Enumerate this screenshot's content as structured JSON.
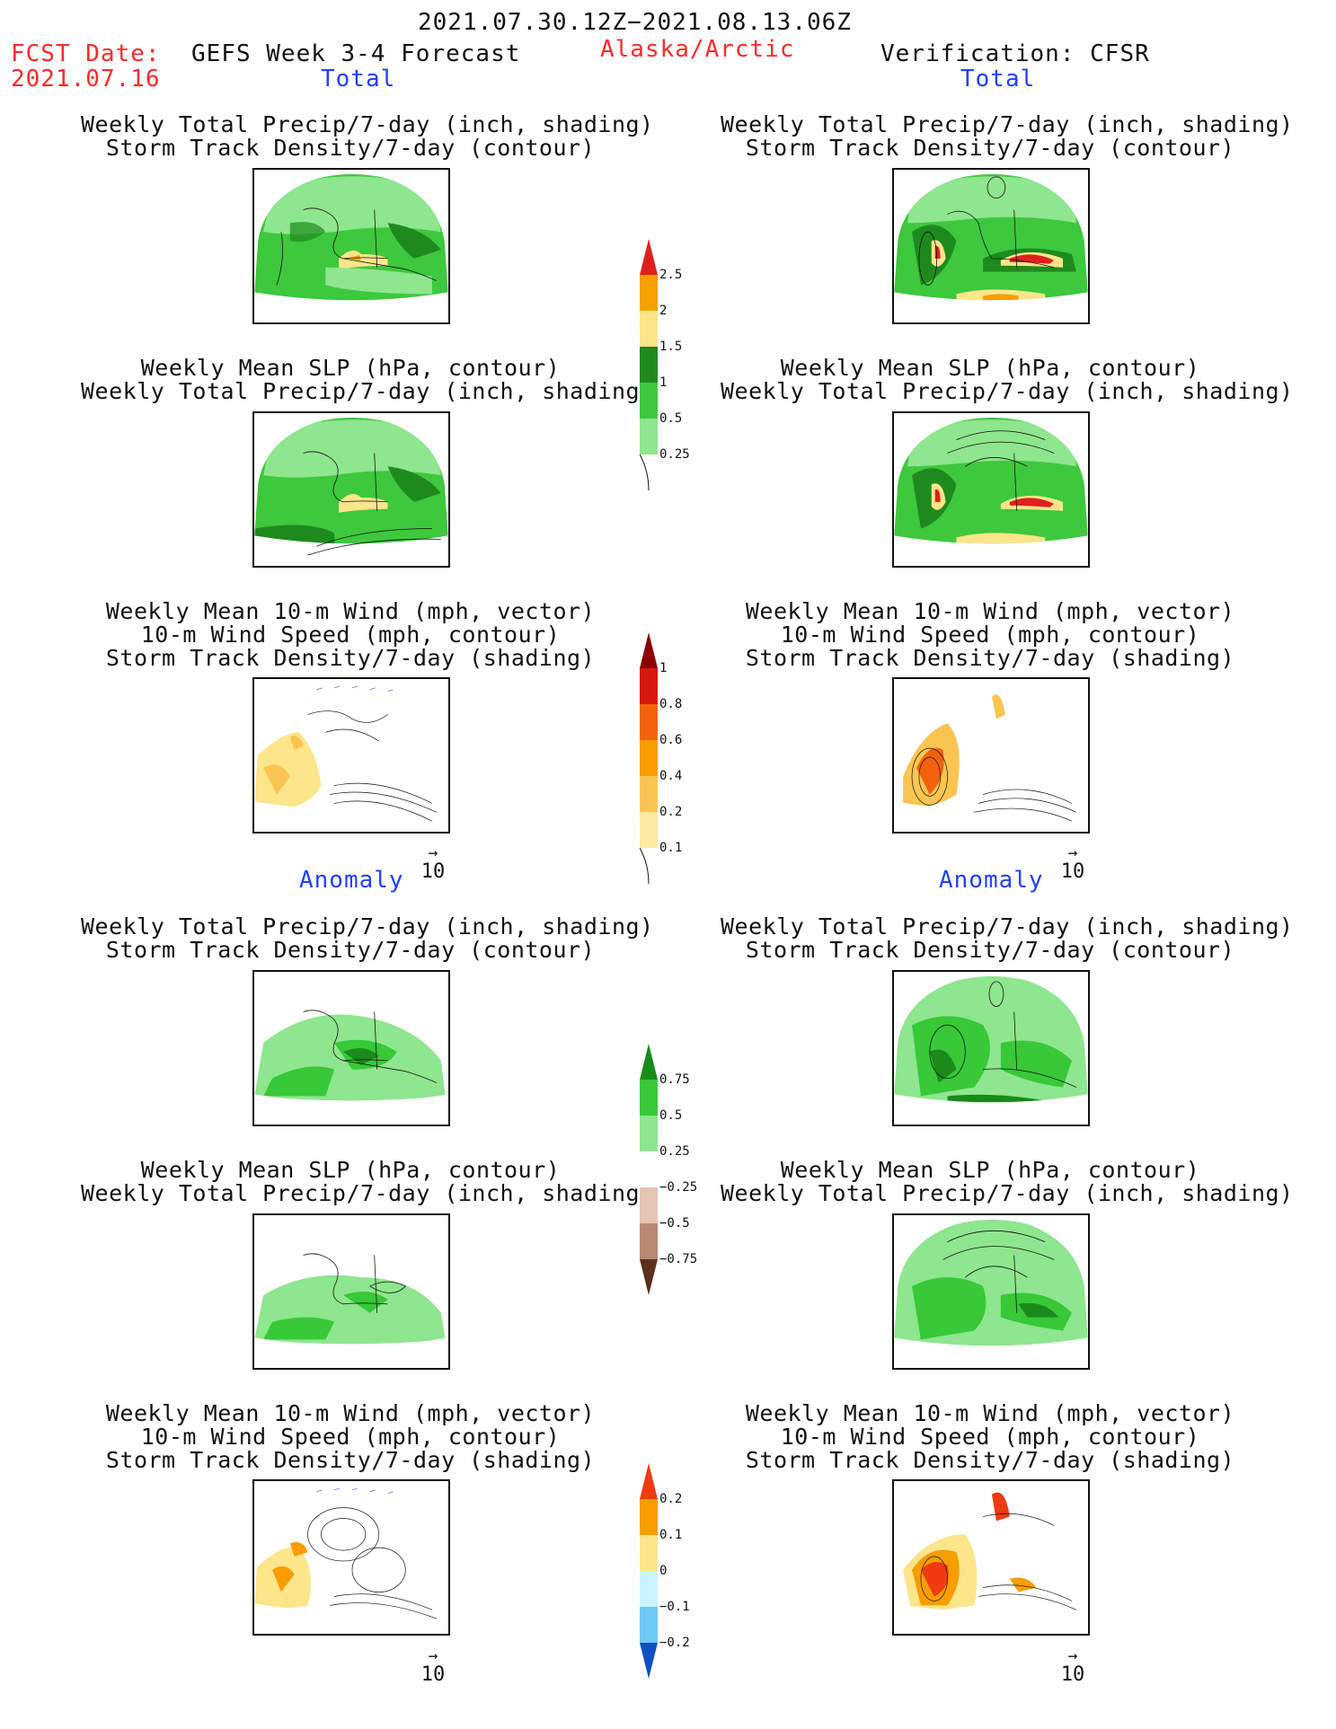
{
  "header": {
    "period": "2021.07.30.12Z−2021.08.13.06Z",
    "fcst_label": "FCST Date:",
    "fcst_date": "2021.07.16",
    "model": "GEFS Week 3-4 Forecast",
    "region": "Alaska/Arctic",
    "verification": "Verification: CFSR"
  },
  "sections": {
    "total": "Total",
    "anomaly": "Anomaly"
  },
  "titles": {
    "precip_track": "Weekly Total Precip/7-day (inch, shading)\nStorm Track Density/7-day (contour)",
    "slp_precip": "Weekly Mean SLP (hPa, contour)\nWeekly Total Precip/7-day (inch, shading)",
    "wind_track": "Weekly Mean 10-m Wind (mph, vector)\n10-m Wind Speed (mph, contour)\nStorm Track Density/7-day (shading)"
  },
  "wind_reference": "10",
  "colorbars": {
    "precip_total": {
      "labels": [
        "2.5",
        "2",
        "1.5",
        "1",
        "0.5",
        "0.25"
      ],
      "colors": [
        "#e0201c",
        "#f7a000",
        "#fde58a",
        "#1e8a1e",
        "#3dc83d",
        "#8ee68e",
        "#c9f5c9"
      ]
    },
    "track_total": {
      "labels": [
        "1",
        "0.8",
        "0.6",
        "0.4",
        "0.2",
        "0.1"
      ],
      "colors": [
        "#8b0000",
        "#d8180c",
        "#f2620a",
        "#f79d00",
        "#f9c451",
        "#fce9a2",
        "#fffbd6"
      ]
    },
    "precip_anom": {
      "labels": [
        "0.75",
        "0.5",
        "0.25",
        "−0.25",
        "−0.5",
        "−0.75"
      ],
      "colors": [
        "#1a8a1a",
        "#38c838",
        "#8ee68e",
        "#c9f5c9",
        "#ffffff",
        "#e6c4b4",
        "#b88a74",
        "#8c5a46",
        "#5c2e1e"
      ]
    },
    "track_anom": {
      "labels": [
        "0.2",
        "0.1",
        "0",
        "−0.1",
        "−0.2"
      ],
      "colors": [
        "#ef3a12",
        "#f79d00",
        "#fde58a",
        "#c9f4ff",
        "#6ec9f5",
        "#2a88e0",
        "#1050c0"
      ]
    }
  }
}
